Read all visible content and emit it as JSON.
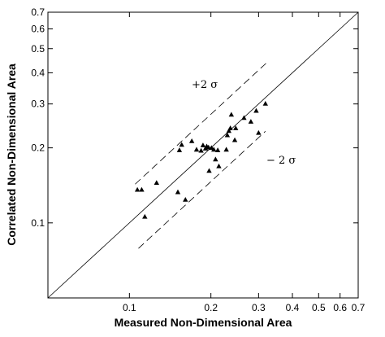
{
  "chart_data": {
    "type": "scatter",
    "title": "",
    "xlabel": "Measured Non-Dimensional Area",
    "ylabel": "Correlated Non-Dimensional Area",
    "xscale": "log",
    "yscale": "log",
    "xlim": [
      0.05,
      0.7
    ],
    "ylim": [
      0.05,
      0.7
    ],
    "grid": false,
    "legend": "none",
    "x_ticks": [
      {
        "value": 0.1,
        "label": "0.1"
      },
      {
        "value": 0.2,
        "label": "0.2"
      },
      {
        "value": 0.3,
        "label": "0.3"
      },
      {
        "value": 0.4,
        "label": "0.4"
      },
      {
        "value": 0.5,
        "label": "0.5"
      },
      {
        "value": 0.6,
        "label": "0.6"
      },
      {
        "value": 0.7,
        "label": "0.7"
      }
    ],
    "y_ticks": [
      {
        "value": 0.1,
        "label": "0.1"
      },
      {
        "value": 0.2,
        "label": "0.2"
      },
      {
        "value": 0.3,
        "label": "0.3"
      },
      {
        "value": 0.4,
        "label": "0.4"
      },
      {
        "value": 0.5,
        "label": "0.5"
      },
      {
        "value": 0.6,
        "label": "0.6"
      },
      {
        "value": 0.7,
        "label": "0.7"
      }
    ],
    "points": [
      {
        "x": 0.107,
        "y": 0.136
      },
      {
        "x": 0.111,
        "y": 0.136
      },
      {
        "x": 0.114,
        "y": 0.106
      },
      {
        "x": 0.126,
        "y": 0.145
      },
      {
        "x": 0.151,
        "y": 0.133
      },
      {
        "x": 0.153,
        "y": 0.196
      },
      {
        "x": 0.156,
        "y": 0.206
      },
      {
        "x": 0.161,
        "y": 0.124
      },
      {
        "x": 0.17,
        "y": 0.213
      },
      {
        "x": 0.177,
        "y": 0.197
      },
      {
        "x": 0.184,
        "y": 0.195
      },
      {
        "x": 0.187,
        "y": 0.205
      },
      {
        "x": 0.191,
        "y": 0.199
      },
      {
        "x": 0.193,
        "y": 0.203
      },
      {
        "x": 0.196,
        "y": 0.201
      },
      {
        "x": 0.197,
        "y": 0.162
      },
      {
        "x": 0.201,
        "y": 0.2
      },
      {
        "x": 0.205,
        "y": 0.197
      },
      {
        "x": 0.208,
        "y": 0.18
      },
      {
        "x": 0.212,
        "y": 0.196
      },
      {
        "x": 0.214,
        "y": 0.169
      },
      {
        "x": 0.228,
        "y": 0.197
      },
      {
        "x": 0.23,
        "y": 0.225
      },
      {
        "x": 0.233,
        "y": 0.234
      },
      {
        "x": 0.236,
        "y": 0.24
      },
      {
        "x": 0.238,
        "y": 0.272
      },
      {
        "x": 0.245,
        "y": 0.215
      },
      {
        "x": 0.247,
        "y": 0.24
      },
      {
        "x": 0.265,
        "y": 0.264
      },
      {
        "x": 0.281,
        "y": 0.255
      },
      {
        "x": 0.294,
        "y": 0.282
      },
      {
        "x": 0.3,
        "y": 0.23
      },
      {
        "x": 0.318,
        "y": 0.301
      }
    ],
    "reference_line": {
      "style": "solid",
      "from": [
        0.05,
        0.05
      ],
      "to": [
        0.7,
        0.7
      ]
    },
    "band_upper": {
      "label": "+2 σ",
      "style": "dashed",
      "from": [
        0.105,
        0.143
      ],
      "to": [
        0.32,
        0.437
      ]
    },
    "band_lower": {
      "label": "− 2 σ",
      "style": "dashed",
      "from": [
        0.108,
        0.079
      ],
      "to": [
        0.318,
        0.233
      ]
    }
  }
}
